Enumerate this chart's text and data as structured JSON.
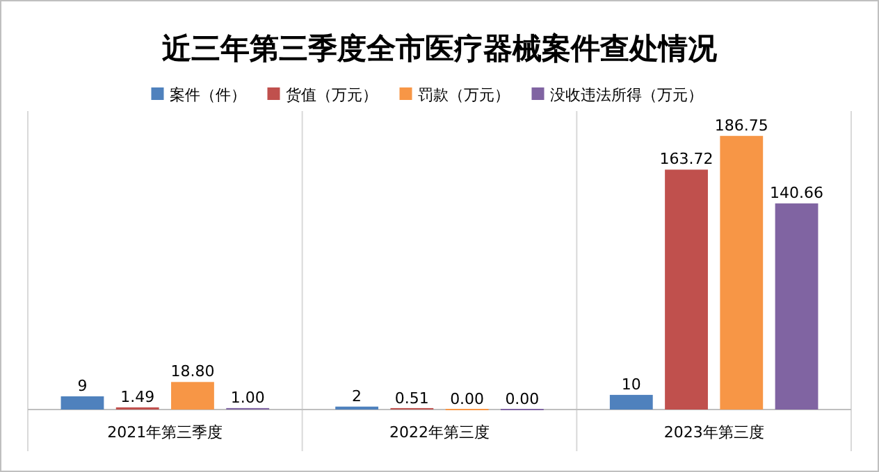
{
  "chart_data": {
    "type": "bar",
    "title": "近三年第三季度全市医疗器械案件查处情况",
    "categories": [
      "2021年第三季度",
      "2022年第三度",
      "2023年第三度"
    ],
    "series": [
      {
        "name": "案件（件）",
        "color": "#4f81bd",
        "values": [
          9,
          2,
          10
        ],
        "value_labels": [
          "9",
          "2",
          "10"
        ]
      },
      {
        "name": "货值（万元）",
        "color": "#c0504d",
        "values": [
          1.49,
          0.51,
          163.72
        ],
        "value_labels": [
          "1.49",
          "0.51",
          "163.72"
        ]
      },
      {
        "name": "罚款（万元）",
        "color": "#f79646",
        "values": [
          18.8,
          0,
          186.75
        ],
        "value_labels": [
          "18.80",
          "0.00",
          "186.75"
        ]
      },
      {
        "name": "没收违法所得（万元）",
        "color": "#8064a2",
        "values": [
          1,
          0,
          140.66
        ],
        "value_labels": [
          "1.00",
          "0.00",
          "140.66"
        ]
      }
    ],
    "grid": "x",
    "legend": "top"
  }
}
